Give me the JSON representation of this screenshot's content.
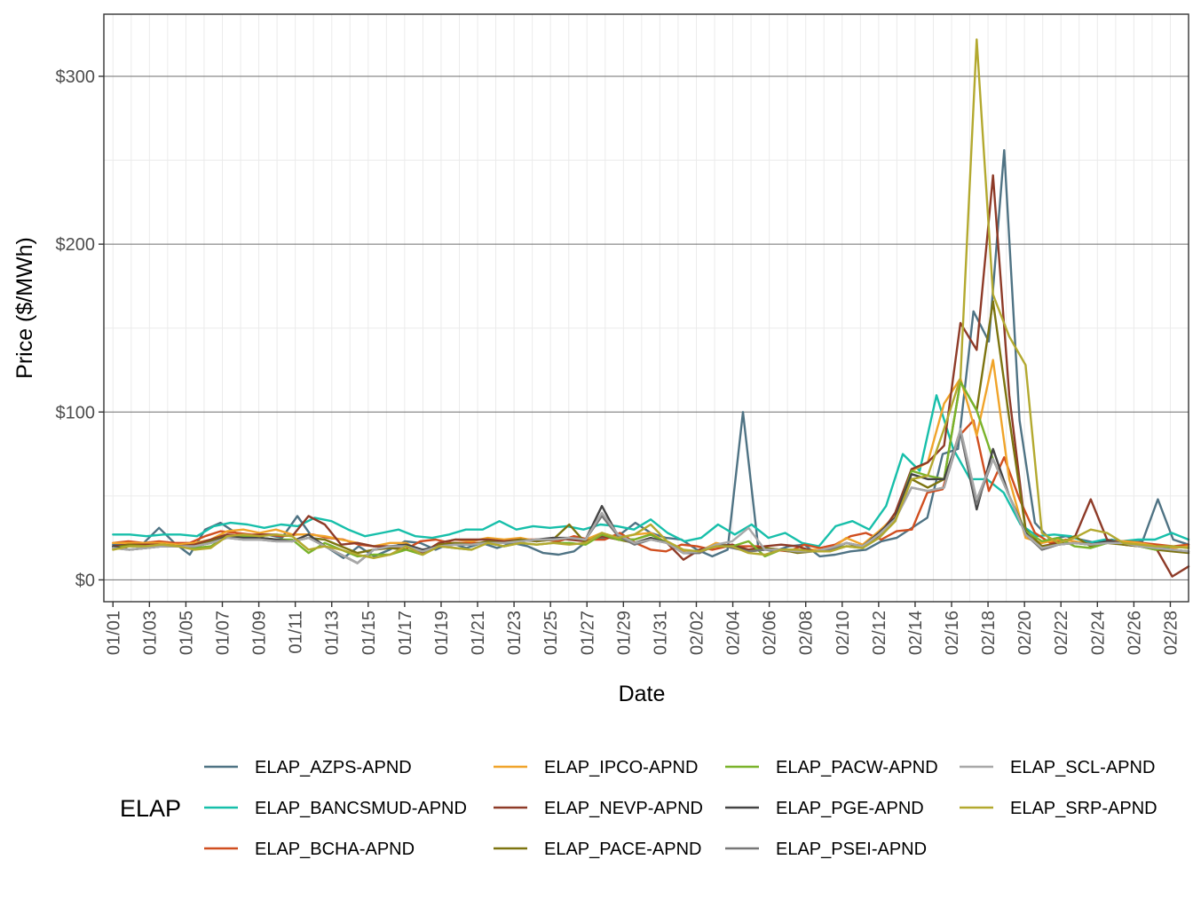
{
  "chart_data": {
    "type": "line",
    "xlabel": "Date",
    "ylabel": "Price ($/MWh)",
    "x_tick_labels": [
      "01/01",
      "01/03",
      "01/05",
      "01/07",
      "01/09",
      "01/11",
      "01/13",
      "01/15",
      "01/17",
      "01/19",
      "01/21",
      "01/23",
      "01/25",
      "01/27",
      "01/29",
      "01/31",
      "02/02",
      "02/04",
      "02/06",
      "02/08",
      "02/10",
      "02/12",
      "02/14",
      "02/16",
      "02/18",
      "02/20",
      "02/22",
      "02/24",
      "02/26",
      "02/28"
    ],
    "y_ticks": [
      0,
      100,
      200,
      300
    ],
    "y_tick_labels": [
      "$0",
      "$100",
      "$200",
      "$300"
    ],
    "ylim": [
      -13,
      337
    ],
    "xlim_days": [
      0.5,
      60.0
    ],
    "x_start": "01/01",
    "legend": {
      "title": "ELAP",
      "position": "bottom"
    },
    "grid": true,
    "series": [
      {
        "name": "ELAP_AZPS-APND",
        "color": "#4f7384",
        "values": [
          21,
          22,
          22,
          31,
          22,
          15,
          30,
          34,
          28,
          25,
          27,
          25,
          38,
          25,
          19,
          13,
          20,
          14,
          18,
          23,
          22,
          18,
          22,
          19,
          22,
          19,
          22,
          20,
          16,
          15,
          17,
          24,
          25,
          27,
          34,
          28,
          25,
          24,
          18,
          14,
          18,
          100,
          19,
          17,
          20,
          21,
          14,
          15,
          17,
          18,
          23,
          25,
          31,
          37,
          75,
          78,
          160,
          142,
          256,
          95,
          34,
          24,
          26,
          24,
          22,
          24,
          22,
          23,
          48,
          24,
          21
        ]
      },
      {
        "name": "ELAP_BANCSMUD-APND",
        "color": "#17bfaa",
        "values": [
          27,
          27,
          26,
          27,
          27,
          26,
          32,
          34,
          33,
          31,
          33,
          32,
          37,
          35,
          30,
          26,
          28,
          30,
          26,
          25,
          27,
          30,
          30,
          35,
          30,
          32,
          31,
          32,
          30,
          33,
          32,
          30,
          36,
          28,
          23,
          25,
          33,
          27,
          33,
          25,
          28,
          22,
          20,
          32,
          35,
          30,
          44,
          75,
          65,
          110,
          78,
          60,
          60,
          52,
          33,
          26,
          27,
          26,
          22,
          24,
          23,
          24,
          24,
          28,
          24
        ]
      },
      {
        "name": "ELAP_BCHA-APND",
        "color": "#d04e1f",
        "values": [
          22,
          23,
          22,
          23,
          22,
          22,
          26,
          29,
          28,
          27,
          27,
          26,
          27,
          27,
          25,
          24,
          21,
          20,
          20,
          18,
          23,
          24,
          22,
          22,
          22,
          24,
          23,
          24,
          24,
          23,
          26,
          24,
          24,
          28,
          22,
          18,
          17,
          21,
          20,
          18,
          20,
          20,
          20,
          18,
          17,
          21,
          19,
          21,
          26,
          28,
          24,
          29,
          30,
          52,
          54,
          85,
          95,
          53,
          73,
          48,
          28,
          22,
          24,
          22,
          21,
          23,
          23,
          22,
          21,
          20,
          21
        ]
      },
      {
        "name": "ELAP_IPCO-APND",
        "color": "#f0a42a",
        "values": [
          22,
          22,
          22,
          22,
          21,
          22,
          24,
          29,
          30,
          28,
          30,
          27,
          27,
          26,
          24,
          22,
          20,
          22,
          22,
          16,
          22,
          24,
          23,
          25,
          24,
          25,
          23,
          24,
          25,
          24,
          28,
          25,
          27,
          28,
          22,
          17,
          17,
          22,
          20,
          18,
          19,
          18,
          18,
          18,
          18,
          25,
          21,
          29,
          38,
          65,
          70,
          105,
          120,
          86,
          131,
          60,
          25,
          22,
          24,
          23,
          21,
          22,
          23,
          22,
          20,
          19,
          20
        ]
      },
      {
        "name": "ELAP_NEVP-APND",
        "color": "#8e3b28",
        "values": [
          20,
          21,
          21,
          21,
          20,
          21,
          24,
          27,
          26,
          27,
          27,
          26,
          38,
          33,
          21,
          22,
          20,
          20,
          20,
          16,
          22,
          24,
          24,
          24,
          23,
          24,
          23,
          25,
          24,
          23,
          26,
          24,
          24,
          27,
          22,
          12,
          18,
          20,
          21,
          18,
          20,
          21,
          20,
          17,
          18,
          22,
          20,
          26,
          40,
          66,
          70,
          80,
          153,
          137,
          241,
          110,
          30,
          20,
          22,
          25,
          48,
          24,
          21,
          20,
          19,
          2,
          8
        ]
      },
      {
        "name": "ELAP_PACE-APND",
        "color": "#7d7410",
        "values": [
          19,
          21,
          20,
          21,
          20,
          20,
          23,
          26,
          25,
          25,
          24,
          23,
          25,
          24,
          20,
          16,
          18,
          19,
          18,
          15,
          21,
          22,
          21,
          23,
          22,
          24,
          23,
          24,
          33,
          22,
          28,
          24,
          22,
          25,
          22,
          16,
          17,
          20,
          20,
          17,
          19,
          18,
          16,
          17,
          18,
          20,
          20,
          25,
          35,
          60,
          55,
          60,
          118,
          101,
          166,
          96,
          30,
          20,
          21,
          26,
          20,
          22,
          21,
          20,
          18,
          17,
          16
        ]
      },
      {
        "name": "ELAP_PACW-APND",
        "color": "#7ab32b",
        "values": [
          19,
          20,
          20,
          21,
          20,
          19,
          20,
          26,
          26,
          25,
          24,
          24,
          16,
          22,
          18,
          14,
          15,
          15,
          18,
          15,
          20,
          19,
          18,
          22,
          20,
          22,
          21,
          22,
          22,
          21,
          27,
          24,
          24,
          27,
          22,
          16,
          17,
          21,
          20,
          23,
          14,
          18,
          18,
          17,
          18,
          20,
          19,
          25,
          35,
          65,
          62,
          60,
          118,
          101,
          72,
          50,
          29,
          23,
          25,
          20,
          19,
          22,
          22,
          20,
          18,
          20,
          19
        ]
      },
      {
        "name": "ELAP_PGE-APND",
        "color": "#444444",
        "values": [
          20,
          18,
          19,
          20,
          20,
          20,
          22,
          26,
          25,
          25,
          24,
          23,
          27,
          20,
          15,
          10,
          18,
          20,
          21,
          18,
          20,
          21,
          21,
          22,
          22,
          23,
          24,
          25,
          25,
          24,
          44,
          26,
          22,
          25,
          22,
          16,
          16,
          21,
          20,
          17,
          18,
          18,
          17,
          17,
          18,
          22,
          20,
          28,
          37,
          63,
          60,
          60,
          88,
          42,
          78,
          50,
          28,
          18,
          21,
          22,
          21,
          23,
          22,
          20,
          19,
          18,
          17
        ]
      },
      {
        "name": "ELAP_PSEI-APND",
        "color": "#777777",
        "values": [
          19,
          18,
          19,
          20,
          20,
          20,
          22,
          25,
          24,
          24,
          23,
          23,
          25,
          20,
          15,
          10,
          18,
          20,
          20,
          17,
          20,
          21,
          21,
          22,
          22,
          23,
          24,
          24,
          25,
          24,
          38,
          26,
          21,
          24,
          22,
          16,
          16,
          21,
          19,
          17,
          18,
          18,
          17,
          17,
          18,
          22,
          20,
          27,
          36,
          55,
          53,
          55,
          88,
          45,
          72,
          50,
          27,
          18,
          21,
          22,
          21,
          22,
          22,
          20,
          19,
          18,
          17
        ]
      },
      {
        "name": "ELAP_SCL-APND",
        "color": "#a8a8a8",
        "values": [
          19,
          18,
          19,
          20,
          20,
          20,
          22,
          25,
          24,
          24,
          23,
          23,
          25,
          20,
          15,
          10,
          18,
          20,
          20,
          17,
          20,
          21,
          21,
          22,
          22,
          23,
          24,
          24,
          25,
          24,
          40,
          27,
          22,
          24,
          22,
          16,
          17,
          21,
          23,
          31,
          18,
          18,
          17,
          17,
          19,
          22,
          20,
          27,
          36,
          55,
          53,
          55,
          90,
          48,
          72,
          50,
          27,
          19,
          21,
          22,
          21,
          22,
          22,
          20,
          19,
          18,
          17
        ]
      },
      {
        "name": "ELAP_SRP-APND",
        "color": "#b3a92f",
        "values": [
          18,
          20,
          20,
          21,
          20,
          18,
          19,
          26,
          27,
          26,
          27,
          26,
          18,
          20,
          18,
          15,
          13,
          15,
          20,
          15,
          20,
          19,
          18,
          22,
          20,
          22,
          21,
          22,
          21,
          22,
          28,
          25,
          27,
          33,
          23,
          18,
          17,
          20,
          20,
          16,
          15,
          18,
          18,
          17,
          17,
          20,
          19,
          25,
          35,
          60,
          62,
          90,
          120,
          322,
          170,
          145,
          128,
          28,
          22,
          25,
          30,
          28,
          22,
          21,
          20,
          20,
          19
        ]
      }
    ]
  }
}
